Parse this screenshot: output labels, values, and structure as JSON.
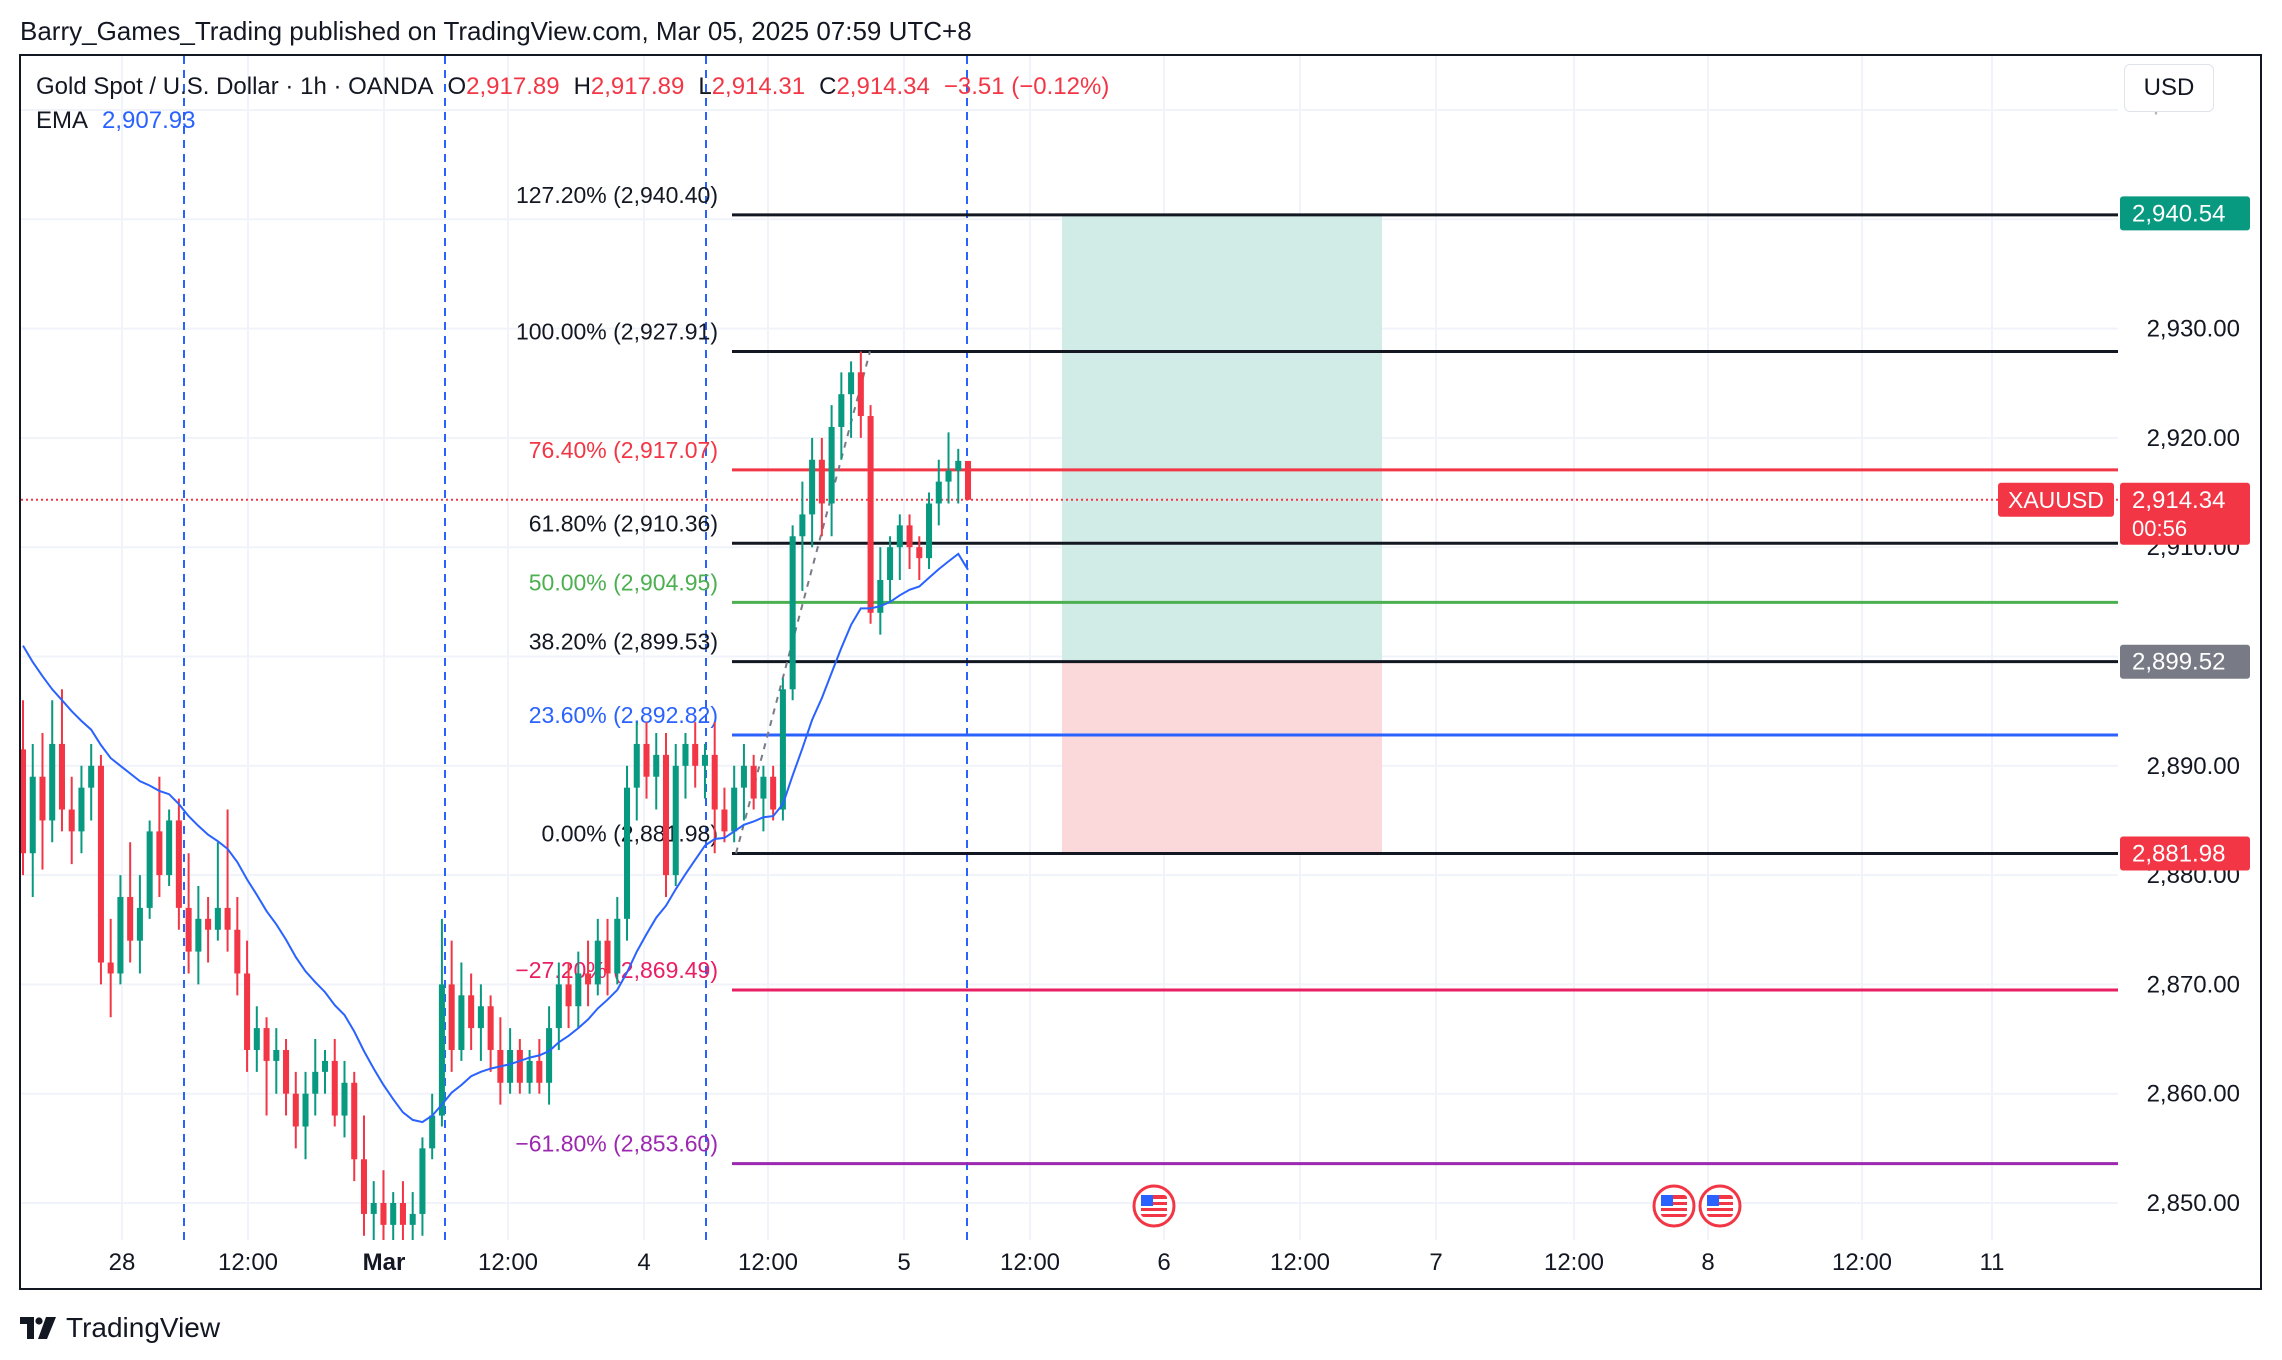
{
  "publisher_line": "Barry_Games_Trading published on TradingView.com, Mar 05, 2025 07:59 UTC+8",
  "legend": {
    "symbol": "Gold Spot / U.S. Dollar · 1h · OANDA",
    "open_label": "O",
    "open": "2,917.89",
    "high_label": "H",
    "high": "2,917.89",
    "low_label": "L",
    "low": "2,914.31",
    "close_label": "C",
    "close": "2,914.34",
    "change": "−3.51 (−0.12%)",
    "ema_label": "EMA",
    "ema_value": "2,907.93"
  },
  "currency_button": "USD",
  "footer_brand": "TradingView",
  "colors": {
    "up": "#089981",
    "down": "#f23645",
    "ema": "#2962ff",
    "fib_black": "#131722",
    "fib_red": "#f23645",
    "fib_green": "#4caf50",
    "fib_blue": "#2962ff",
    "fib_pink": "#e91e63",
    "fib_purple": "#9c27b0",
    "profit_zone": "#d1ece6",
    "loss_zone": "#fbd8da"
  },
  "chart_data": {
    "type": "candlestick",
    "symbol": "XAUUSD",
    "timeframe": "1h",
    "y_axis": {
      "range": [
        2847,
        2962
      ],
      "ticks": [
        "2,850.00",
        "2,860.00",
        "2,870.00",
        "2,880.00",
        "2,890.00",
        "2,900.00",
        "2,910.00",
        "2,920.00",
        "2,930.00"
      ]
    },
    "x_axis": {
      "ticks": [
        "28",
        "12:00",
        "Mar",
        "12:00",
        "4",
        "12:00",
        "5",
        "12:00",
        "6",
        "12:00",
        "7",
        "12:00",
        "8",
        "12:00",
        "11"
      ]
    },
    "price_labels": [
      {
        "text": "2,940.54",
        "value": 2940.54,
        "color": "#089981"
      },
      {
        "text": "XAUUSD",
        "value": 2914.34,
        "color": "#f23645"
      },
      {
        "text": "2,914.34",
        "value": 2914.34,
        "color": "#f23645"
      },
      {
        "text": "00:56",
        "value": 2914.34,
        "color": "#f23645"
      },
      {
        "text": "2,899.52",
        "value": 2899.52,
        "color": "#787b86"
      },
      {
        "text": "2,881.98",
        "value": 2881.98,
        "color": "#f23645"
      }
    ],
    "fibonacci": [
      {
        "label": "127.20% (2,940.40)",
        "value": 2940.4,
        "color": "#131722"
      },
      {
        "label": "100.00% (2,927.91)",
        "value": 2927.91,
        "color": "#131722"
      },
      {
        "label": "76.40% (2,917.07)",
        "value": 2917.07,
        "color": "#f23645"
      },
      {
        "label": "61.80% (2,910.36)",
        "value": 2910.36,
        "color": "#131722"
      },
      {
        "label": "50.00% (2,904.95)",
        "value": 2904.95,
        "color": "#4caf50"
      },
      {
        "label": "38.20% (2,899.53)",
        "value": 2899.53,
        "color": "#131722"
      },
      {
        "label": "23.60% (2,892.82)",
        "value": 2892.82,
        "color": "#2962ff"
      },
      {
        "label": "0.00% (2,881.98)",
        "value": 2881.98,
        "color": "#131722"
      },
      {
        "label": "−27.20% (2,869.49)",
        "value": 2869.49,
        "color": "#e91e63"
      },
      {
        "label": "−61.80% (2,853.60)",
        "value": 2853.6,
        "color": "#9c27b0"
      }
    ],
    "position": {
      "type": "long",
      "entry": 2899.52,
      "target": 2940.54,
      "stop": 2881.98
    },
    "current_price": 2914.34,
    "candles": [
      {
        "o": 2891.5,
        "h": 2896.0,
        "l": 2880.0,
        "c": 2882.0
      },
      {
        "o": 2882.0,
        "h": 2892.0,
        "l": 2878.0,
        "c": 2889.0
      },
      {
        "o": 2889.0,
        "h": 2893.0,
        "l": 2880.5,
        "c": 2885.0
      },
      {
        "o": 2885.0,
        "h": 2896.0,
        "l": 2883.0,
        "c": 2892.0
      },
      {
        "o": 2892.0,
        "h": 2897.0,
        "l": 2884.0,
        "c": 2886.0
      },
      {
        "o": 2886.0,
        "h": 2889.0,
        "l": 2881.0,
        "c": 2884.0
      },
      {
        "o": 2884.0,
        "h": 2890.0,
        "l": 2882.0,
        "c": 2888.0
      },
      {
        "o": 2888.0,
        "h": 2892.0,
        "l": 2885.0,
        "c": 2890.0
      },
      {
        "o": 2890.0,
        "h": 2891.0,
        "l": 2870.0,
        "c": 2872.0
      },
      {
        "o": 2872.0,
        "h": 2876.0,
        "l": 2867.0,
        "c": 2871.0
      },
      {
        "o": 2871.0,
        "h": 2880.0,
        "l": 2870.0,
        "c": 2878.0
      },
      {
        "o": 2878.0,
        "h": 2883.0,
        "l": 2872.0,
        "c": 2874.0
      },
      {
        "o": 2874.0,
        "h": 2880.0,
        "l": 2871.0,
        "c": 2877.0
      },
      {
        "o": 2877.0,
        "h": 2885.0,
        "l": 2876.0,
        "c": 2884.0
      },
      {
        "o": 2884.0,
        "h": 2889.0,
        "l": 2878.0,
        "c": 2880.0
      },
      {
        "o": 2880.0,
        "h": 2886.0,
        "l": 2879.0,
        "c": 2885.0
      },
      {
        "o": 2885.0,
        "h": 2887.0,
        "l": 2875.0,
        "c": 2877.0
      },
      {
        "o": 2877.0,
        "h": 2882.0,
        "l": 2871.0,
        "c": 2873.0
      },
      {
        "o": 2873.0,
        "h": 2879.0,
        "l": 2870.0,
        "c": 2876.0
      },
      {
        "o": 2876.0,
        "h": 2878.0,
        "l": 2872.0,
        "c": 2875.0
      },
      {
        "o": 2875.0,
        "h": 2883.0,
        "l": 2874.0,
        "c": 2877.0
      },
      {
        "o": 2877.0,
        "h": 2886.0,
        "l": 2873.0,
        "c": 2875.0
      },
      {
        "o": 2875.0,
        "h": 2878.0,
        "l": 2869.0,
        "c": 2871.0
      },
      {
        "o": 2871.0,
        "h": 2874.0,
        "l": 2862.0,
        "c": 2864.0
      },
      {
        "o": 2864.0,
        "h": 2868.0,
        "l": 2862.0,
        "c": 2866.0
      },
      {
        "o": 2866.0,
        "h": 2867.0,
        "l": 2858.0,
        "c": 2863.0
      },
      {
        "o": 2863.0,
        "h": 2866.0,
        "l": 2860.0,
        "c": 2864.0
      },
      {
        "o": 2864.0,
        "h": 2865.0,
        "l": 2858.0,
        "c": 2860.0
      },
      {
        "o": 2860.0,
        "h": 2862.0,
        "l": 2855.0,
        "c": 2857.0
      },
      {
        "o": 2857.0,
        "h": 2862.0,
        "l": 2854.0,
        "c": 2860.0
      },
      {
        "o": 2860.0,
        "h": 2865.0,
        "l": 2858.0,
        "c": 2862.0
      },
      {
        "o": 2862.0,
        "h": 2864.0,
        "l": 2860.0,
        "c": 2863.0
      },
      {
        "o": 2863.0,
        "h": 2865.0,
        "l": 2857.0,
        "c": 2858.0
      },
      {
        "o": 2858.0,
        "h": 2863.0,
        "l": 2856.0,
        "c": 2861.0
      },
      {
        "o": 2861.0,
        "h": 2862.0,
        "l": 2852.0,
        "c": 2854.0
      },
      {
        "o": 2854.0,
        "h": 2858.0,
        "l": 2847.0,
        "c": 2849.0
      },
      {
        "o": 2849.0,
        "h": 2852.0,
        "l": 2846.5,
        "c": 2850.0
      },
      {
        "o": 2850.0,
        "h": 2853.0,
        "l": 2846.5,
        "c": 2848.0
      },
      {
        "o": 2848.0,
        "h": 2851.0,
        "l": 2846.5,
        "c": 2850.0
      },
      {
        "o": 2850.0,
        "h": 2852.0,
        "l": 2846.5,
        "c": 2848.0
      },
      {
        "o": 2848.0,
        "h": 2851.0,
        "l": 2846.5,
        "c": 2849.0
      },
      {
        "o": 2849.0,
        "h": 2856.0,
        "l": 2847.0,
        "c": 2855.0
      },
      {
        "o": 2855.0,
        "h": 2860.0,
        "l": 2854.0,
        "c": 2858.0
      },
      {
        "o": 2858.0,
        "h": 2876.0,
        "l": 2857.0,
        "c": 2870.0
      },
      {
        "o": 2870.0,
        "h": 2874.0,
        "l": 2862.0,
        "c": 2864.0
      },
      {
        "o": 2864.0,
        "h": 2872.0,
        "l": 2863.0,
        "c": 2869.0
      },
      {
        "o": 2869.0,
        "h": 2871.0,
        "l": 2864.0,
        "c": 2866.0
      },
      {
        "o": 2866.0,
        "h": 2870.0,
        "l": 2863.0,
        "c": 2868.0
      },
      {
        "o": 2868.0,
        "h": 2869.0,
        "l": 2862.0,
        "c": 2864.0
      },
      {
        "o": 2864.0,
        "h": 2867.0,
        "l": 2859.0,
        "c": 2861.0
      },
      {
        "o": 2861.0,
        "h": 2866.0,
        "l": 2860.0,
        "c": 2864.0
      },
      {
        "o": 2864.0,
        "h": 2865.0,
        "l": 2860.0,
        "c": 2861.0
      },
      {
        "o": 2861.0,
        "h": 2864.0,
        "l": 2860.0,
        "c": 2863.0
      },
      {
        "o": 2863.0,
        "h": 2865.0,
        "l": 2860.0,
        "c": 2861.0
      },
      {
        "o": 2861.0,
        "h": 2868.0,
        "l": 2859.0,
        "c": 2866.0
      },
      {
        "o": 2866.0,
        "h": 2872.0,
        "l": 2864.0,
        "c": 2870.0
      },
      {
        "o": 2870.0,
        "h": 2872.0,
        "l": 2866.0,
        "c": 2868.0
      },
      {
        "o": 2868.0,
        "h": 2873.0,
        "l": 2866.0,
        "c": 2871.0
      },
      {
        "o": 2871.0,
        "h": 2874.0,
        "l": 2868.0,
        "c": 2870.0
      },
      {
        "o": 2870.0,
        "h": 2876.0,
        "l": 2869.0,
        "c": 2874.0
      },
      {
        "o": 2874.0,
        "h": 2876.0,
        "l": 2869.0,
        "c": 2871.0
      },
      {
        "o": 2871.0,
        "h": 2878.0,
        "l": 2870.0,
        "c": 2876.0
      },
      {
        "o": 2876.0,
        "h": 2890.0,
        "l": 2874.0,
        "c": 2888.0
      },
      {
        "o": 2888.0,
        "h": 2894.0,
        "l": 2885.0,
        "c": 2892.0
      },
      {
        "o": 2892.0,
        "h": 2894.0,
        "l": 2887.0,
        "c": 2889.0
      },
      {
        "o": 2889.0,
        "h": 2893.0,
        "l": 2886.0,
        "c": 2891.0
      },
      {
        "o": 2891.0,
        "h": 2893.0,
        "l": 2878.0,
        "c": 2880.0
      },
      {
        "o": 2880.0,
        "h": 2892.0,
        "l": 2879.0,
        "c": 2890.0
      },
      {
        "o": 2890.0,
        "h": 2893.0,
        "l": 2887.0,
        "c": 2892.0
      },
      {
        "o": 2892.0,
        "h": 2894.0,
        "l": 2888.0,
        "c": 2890.0
      },
      {
        "o": 2890.0,
        "h": 2892.0,
        "l": 2887.0,
        "c": 2891.0
      },
      {
        "o": 2891.0,
        "h": 2894.0,
        "l": 2882.0,
        "c": 2886.0
      },
      {
        "o": 2886.0,
        "h": 2888.0,
        "l": 2883.0,
        "c": 2884.0
      },
      {
        "o": 2884.0,
        "h": 2890.0,
        "l": 2883.0,
        "c": 2888.0
      },
      {
        "o": 2888.0,
        "h": 2892.0,
        "l": 2885.0,
        "c": 2890.0
      },
      {
        "o": 2890.0,
        "h": 2891.0,
        "l": 2886.0,
        "c": 2887.0
      },
      {
        "o": 2887.0,
        "h": 2890.0,
        "l": 2884.0,
        "c": 2889.0
      },
      {
        "o": 2889.0,
        "h": 2890.0,
        "l": 2885.0,
        "c": 2886.0
      },
      {
        "o": 2886.0,
        "h": 2898.0,
        "l": 2885.0,
        "c": 2897.0
      },
      {
        "o": 2897.0,
        "h": 2912.0,
        "l": 2896.0,
        "c": 2911.0
      },
      {
        "o": 2911.0,
        "h": 2916.0,
        "l": 2906.0,
        "c": 2913.0
      },
      {
        "o": 2913.0,
        "h": 2920.0,
        "l": 2910.0,
        "c": 2918.0
      },
      {
        "o": 2918.0,
        "h": 2920.0,
        "l": 2911.0,
        "c": 2914.0
      },
      {
        "o": 2914.0,
        "h": 2923.0,
        "l": 2911.0,
        "c": 2921.0
      },
      {
        "o": 2921.0,
        "h": 2926.0,
        "l": 2918.0,
        "c": 2924.0
      },
      {
        "o": 2924.0,
        "h": 2927.0,
        "l": 2920.0,
        "c": 2926.0
      },
      {
        "o": 2926.0,
        "h": 2927.9,
        "l": 2920.0,
        "c": 2922.0
      },
      {
        "o": 2922.0,
        "h": 2923.0,
        "l": 2903.0,
        "c": 2904.0
      },
      {
        "o": 2904.0,
        "h": 2910.0,
        "l": 2902.0,
        "c": 2907.0
      },
      {
        "o": 2907.0,
        "h": 2911.0,
        "l": 2905.0,
        "c": 2910.0
      },
      {
        "o": 2910.0,
        "h": 2913.0,
        "l": 2907.0,
        "c": 2912.0
      },
      {
        "o": 2912.0,
        "h": 2913.0,
        "l": 2908.0,
        "c": 2910.0
      },
      {
        "o": 2910.0,
        "h": 2911.0,
        "l": 2907.0,
        "c": 2909.0
      },
      {
        "o": 2909.0,
        "h": 2915.0,
        "l": 2908.0,
        "c": 2914.0
      },
      {
        "o": 2914.0,
        "h": 2918.0,
        "l": 2912.0,
        "c": 2916.0
      },
      {
        "o": 2916.0,
        "h": 2920.5,
        "l": 2914.0,
        "c": 2917.0
      },
      {
        "o": 2917.0,
        "h": 2919.0,
        "l": 2914.0,
        "c": 2917.9
      },
      {
        "o": 2917.89,
        "h": 2917.89,
        "l": 2914.31,
        "c": 2914.34
      }
    ],
    "ema": [
      2901.0,
      2899.5,
      2898.2,
      2897.0,
      2896.0,
      2895.0,
      2894.1,
      2893.3,
      2891.9,
      2890.7,
      2890.0,
      2889.3,
      2888.6,
      2888.2,
      2887.7,
      2887.4,
      2886.5,
      2885.4,
      2884.5,
      2883.7,
      2883.1,
      2882.4,
      2881.2,
      2879.6,
      2878.2,
      2876.7,
      2875.5,
      2874.1,
      2872.5,
      2871.2,
      2870.2,
      2869.3,
      2868.1,
      2867.2,
      2865.7,
      2863.9,
      2862.3,
      2860.8,
      2859.5,
      2858.3,
      2857.6,
      2857.4,
      2858.0,
      2859.0,
      2860.1,
      2860.8,
      2861.6,
      2862.0,
      2862.3,
      2862.5,
      2862.7,
      2863.0,
      2863.3,
      2863.5,
      2863.9,
      2864.7,
      2865.3,
      2866.0,
      2866.8,
      2867.8,
      2868.6,
      2869.5,
      2871.1,
      2873.0,
      2874.6,
      2876.1,
      2877.2,
      2878.7,
      2880.1,
      2881.4,
      2882.7,
      2883.3,
      2883.4,
      2884.0,
      2884.6,
      2884.9,
      2885.3,
      2885.4,
      2886.5,
      2889.1,
      2891.6,
      2894.2,
      2896.2,
      2898.5,
      2900.8,
      2902.9,
      2904.4,
      2904.4,
      2904.6,
      2905.0,
      2905.6,
      2906.1,
      2906.4,
      2907.2,
      2908.0,
      2908.7,
      2909.4,
      2907.93
    ]
  },
  "event_markers": [
    "us-flag-event",
    "us-flag-event",
    "us-flag-event"
  ]
}
